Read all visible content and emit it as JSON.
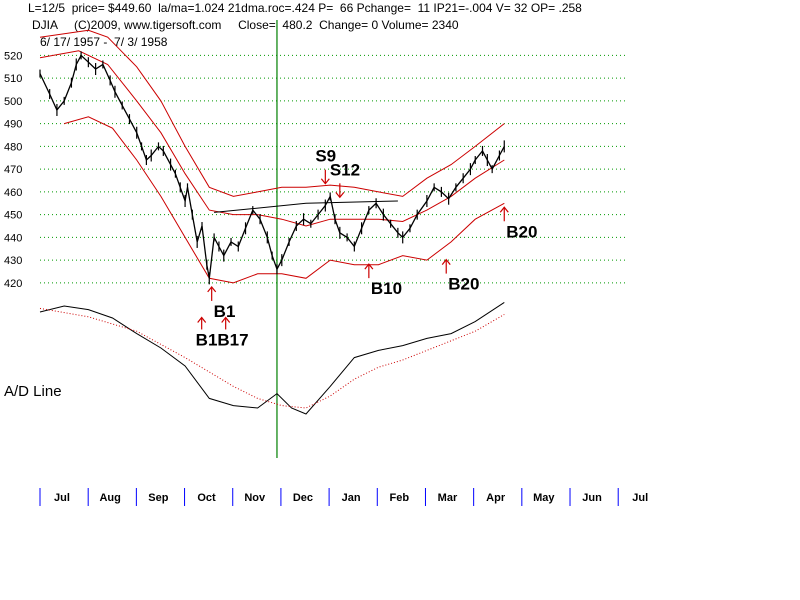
{
  "header": {
    "line1": "L=12/5  price= $449.60  la/ma=1.024 21dma.roc=.424 P=  66 Pchange=  11 IP21=-.004 V= 32 OP= .258",
    "line2": "DJIA     (C)2009, www.tigersoft.com     Close=  480.2  Change= 0 Volume= 2340",
    "line3": "6/ 17/ 1957 -  7/ 3/ 1958"
  },
  "colors": {
    "price": "#000000",
    "band": "#cc0000",
    "grid": "#009900",
    "marker": "#008000",
    "signal": "#cc0000",
    "adl": "#000000",
    "adl_ma": "#cc0000"
  },
  "chart_data": {
    "type": "line",
    "series_name": "DJIA",
    "y_ticks": [
      "420",
      "430",
      "440",
      "450",
      "460",
      "470",
      "480",
      "490",
      "500",
      "510",
      "520"
    ],
    "ylim": [
      416,
      525
    ],
    "months": [
      "Jul",
      "Aug",
      "Sep",
      "Oct",
      "Nov",
      "Dec",
      "Jan",
      "Feb",
      "Mar",
      "Apr",
      "May",
      "Jun",
      "Jul"
    ],
    "price": [
      {
        "t": 0,
        "v": 512
      },
      {
        "t": 0.2,
        "v": 503
      },
      {
        "t": 0.35,
        "v": 496
      },
      {
        "t": 0.5,
        "v": 500
      },
      {
        "t": 0.65,
        "v": 508
      },
      {
        "t": 0.75,
        "v": 516
      },
      {
        "t": 0.85,
        "v": 520
      },
      {
        "t": 1,
        "v": 517
      },
      {
        "t": 1.15,
        "v": 514
      },
      {
        "t": 1.3,
        "v": 516
      },
      {
        "t": 1.45,
        "v": 509
      },
      {
        "t": 1.55,
        "v": 504
      },
      {
        "t": 1.7,
        "v": 498
      },
      {
        "t": 1.85,
        "v": 492
      },
      {
        "t": 2,
        "v": 486
      },
      {
        "t": 2.1,
        "v": 480
      },
      {
        "t": 2.2,
        "v": 474
      },
      {
        "t": 2.3,
        "v": 476
      },
      {
        "t": 2.45,
        "v": 480
      },
      {
        "t": 2.55,
        "v": 478
      },
      {
        "t": 2.7,
        "v": 472
      },
      {
        "t": 2.8,
        "v": 468
      },
      {
        "t": 2.9,
        "v": 462
      },
      {
        "t": 3,
        "v": 456
      },
      {
        "t": 3.05,
        "v": 462
      },
      {
        "t": 3.15,
        "v": 450
      },
      {
        "t": 3.25,
        "v": 438
      },
      {
        "t": 3.35,
        "v": 445
      },
      {
        "t": 3.45,
        "v": 428
      },
      {
        "t": 3.5,
        "v": 422
      },
      {
        "t": 3.6,
        "v": 440
      },
      {
        "t": 3.7,
        "v": 436
      },
      {
        "t": 3.8,
        "v": 432
      },
      {
        "t": 3.95,
        "v": 438
      },
      {
        "t": 4.1,
        "v": 436
      },
      {
        "t": 4.25,
        "v": 444
      },
      {
        "t": 4.4,
        "v": 452
      },
      {
        "t": 4.55,
        "v": 448
      },
      {
        "t": 4.7,
        "v": 440
      },
      {
        "t": 4.8,
        "v": 432
      },
      {
        "t": 4.9,
        "v": 426
      },
      {
        "t": 5,
        "v": 430
      },
      {
        "t": 5.15,
        "v": 438
      },
      {
        "t": 5.3,
        "v": 445
      },
      {
        "t": 5.45,
        "v": 448
      },
      {
        "t": 5.6,
        "v": 446
      },
      {
        "t": 5.75,
        "v": 450
      },
      {
        "t": 5.9,
        "v": 454
      },
      {
        "t": 6,
        "v": 458
      },
      {
        "t": 6.1,
        "v": 448
      },
      {
        "t": 6.2,
        "v": 442
      },
      {
        "t": 6.35,
        "v": 440
      },
      {
        "t": 6.5,
        "v": 436
      },
      {
        "t": 6.65,
        "v": 444
      },
      {
        "t": 6.8,
        "v": 452
      },
      {
        "t": 6.95,
        "v": 455
      },
      {
        "t": 7.1,
        "v": 450
      },
      {
        "t": 7.25,
        "v": 446
      },
      {
        "t": 7.4,
        "v": 442
      },
      {
        "t": 7.5,
        "v": 440
      },
      {
        "t": 7.65,
        "v": 444
      },
      {
        "t": 7.8,
        "v": 450
      },
      {
        "t": 8,
        "v": 456
      },
      {
        "t": 8.15,
        "v": 462
      },
      {
        "t": 8.3,
        "v": 460
      },
      {
        "t": 8.45,
        "v": 457
      },
      {
        "t": 8.6,
        "v": 462
      },
      {
        "t": 8.75,
        "v": 466
      },
      {
        "t": 8.9,
        "v": 470
      },
      {
        "t": 9,
        "v": 474
      },
      {
        "t": 9.15,
        "v": 478
      },
      {
        "t": 9.25,
        "v": 474
      },
      {
        "t": 9.35,
        "v": 470
      },
      {
        "t": 9.5,
        "v": 476
      },
      {
        "t": 9.6,
        "v": 480
      }
    ],
    "upper_band": [
      {
        "t": 0,
        "v": 528
      },
      {
        "t": 1,
        "v": 531
      },
      {
        "t": 1.4,
        "v": 528
      },
      {
        "t": 2,
        "v": 515
      },
      {
        "t": 2.5,
        "v": 500
      },
      {
        "t": 3,
        "v": 480
      },
      {
        "t": 3.5,
        "v": 462
      },
      {
        "t": 4,
        "v": 458
      },
      {
        "t": 4.5,
        "v": 460
      },
      {
        "t": 5,
        "v": 462
      },
      {
        "t": 5.5,
        "v": 462
      },
      {
        "t": 6,
        "v": 463
      },
      {
        "t": 6.5,
        "v": 462
      },
      {
        "t": 7,
        "v": 460
      },
      {
        "t": 7.5,
        "v": 458
      },
      {
        "t": 8,
        "v": 466
      },
      {
        "t": 8.5,
        "v": 472
      },
      {
        "t": 9,
        "v": 480
      },
      {
        "t": 9.6,
        "v": 490
      }
    ],
    "mid_band": [
      {
        "t": 0,
        "v": 519
      },
      {
        "t": 0.8,
        "v": 522
      },
      {
        "t": 1.4,
        "v": 516
      },
      {
        "t": 2,
        "v": 500
      },
      {
        "t": 2.5,
        "v": 486
      },
      {
        "t": 3,
        "v": 468
      },
      {
        "t": 3.5,
        "v": 452
      },
      {
        "t": 4,
        "v": 450
      },
      {
        "t": 4.5,
        "v": 450
      },
      {
        "t": 5,
        "v": 448
      },
      {
        "t": 5.5,
        "v": 445
      },
      {
        "t": 6,
        "v": 448
      },
      {
        "t": 6.5,
        "v": 448
      },
      {
        "t": 7,
        "v": 448
      },
      {
        "t": 7.5,
        "v": 447
      },
      {
        "t": 8,
        "v": 452
      },
      {
        "t": 8.5,
        "v": 458
      },
      {
        "t": 9,
        "v": 466
      },
      {
        "t": 9.6,
        "v": 474
      }
    ],
    "lower_band": [
      {
        "t": 0.5,
        "v": 490
      },
      {
        "t": 1,
        "v": 493
      },
      {
        "t": 1.5,
        "v": 488
      },
      {
        "t": 2,
        "v": 474
      },
      {
        "t": 2.5,
        "v": 458
      },
      {
        "t": 3,
        "v": 440
      },
      {
        "t": 3.5,
        "v": 422
      },
      {
        "t": 4,
        "v": 420
      },
      {
        "t": 4.5,
        "v": 424
      },
      {
        "t": 5,
        "v": 424
      },
      {
        "t": 5.5,
        "v": 422
      },
      {
        "t": 6,
        "v": 430
      },
      {
        "t": 6.5,
        "v": 428
      },
      {
        "t": 7,
        "v": 428
      },
      {
        "t": 7.5,
        "v": 432
      },
      {
        "t": 8,
        "v": 430
      },
      {
        "t": 8.5,
        "v": 438
      },
      {
        "t": 9,
        "v": 448
      },
      {
        "t": 9.6,
        "v": 455
      }
    ],
    "ref_line": [
      {
        "t": 3.6,
        "v": 451
      },
      {
        "t": 5.5,
        "v": 455
      },
      {
        "t": 7.4,
        "v": 456
      }
    ],
    "marker_t": 4.9,
    "adl_label": "A/D Line",
    "adl": [
      {
        "t": 0,
        "v": 0.9
      },
      {
        "t": 0.5,
        "v": 0.95
      },
      {
        "t": 1,
        "v": 0.92
      },
      {
        "t": 1.5,
        "v": 0.85
      },
      {
        "t": 2,
        "v": 0.72
      },
      {
        "t": 2.5,
        "v": 0.6
      },
      {
        "t": 3,
        "v": 0.45
      },
      {
        "t": 3.5,
        "v": 0.18
      },
      {
        "t": 4,
        "v": 0.12
      },
      {
        "t": 4.5,
        "v": 0.1
      },
      {
        "t": 4.9,
        "v": 0.22
      },
      {
        "t": 5.2,
        "v": 0.1
      },
      {
        "t": 5.5,
        "v": 0.05
      },
      {
        "t": 6,
        "v": 0.28
      },
      {
        "t": 6.5,
        "v": 0.52
      },
      {
        "t": 7,
        "v": 0.58
      },
      {
        "t": 7.5,
        "v": 0.62
      },
      {
        "t": 8,
        "v": 0.68
      },
      {
        "t": 8.5,
        "v": 0.72
      },
      {
        "t": 9,
        "v": 0.82
      },
      {
        "t": 9.6,
        "v": 0.98
      }
    ],
    "adl_ma": [
      {
        "t": 0,
        "v": 0.93
      },
      {
        "t": 1,
        "v": 0.86
      },
      {
        "t": 2,
        "v": 0.74
      },
      {
        "t": 3,
        "v": 0.52
      },
      {
        "t": 3.5,
        "v": 0.4
      },
      {
        "t": 4,
        "v": 0.28
      },
      {
        "t": 4.5,
        "v": 0.18
      },
      {
        "t": 5,
        "v": 0.12
      },
      {
        "t": 5.5,
        "v": 0.1
      },
      {
        "t": 6,
        "v": 0.2
      },
      {
        "t": 6.5,
        "v": 0.34
      },
      {
        "t": 7,
        "v": 0.44
      },
      {
        "t": 7.5,
        "v": 0.5
      },
      {
        "t": 8,
        "v": 0.58
      },
      {
        "t": 8.5,
        "v": 0.66
      },
      {
        "t": 9,
        "v": 0.74
      },
      {
        "t": 9.6,
        "v": 0.88
      }
    ],
    "signals": [
      {
        "label": "B1",
        "t": 3.55,
        "v": 420,
        "arrow": "up"
      },
      {
        "label": "B1B17",
        "t": 3.55,
        "v": 418,
        "arrow": "up2"
      },
      {
        "label": "S9",
        "t": 5.9,
        "v": 468,
        "arrow": "down"
      },
      {
        "label": "S12",
        "t": 6.2,
        "v": 462,
        "arrow": "down"
      },
      {
        "label": "B10",
        "t": 6.8,
        "v": 430,
        "arrow": "up"
      },
      {
        "label": "B20",
        "t": 8.4,
        "v": 432,
        "arrow": "up"
      },
      {
        "label": "B20",
        "t": 9.6,
        "v": 455,
        "arrow": "up"
      }
    ]
  }
}
